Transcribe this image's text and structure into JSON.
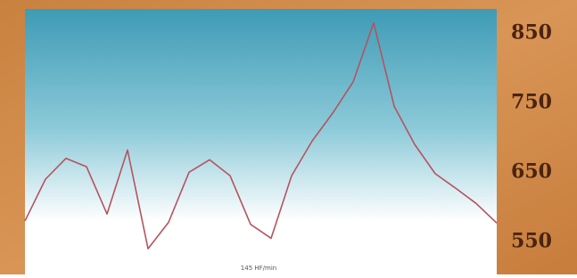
{
  "chart_data": {
    "type": "line",
    "annotation": "145 HF/min",
    "values": [
      580,
      640,
      670,
      658,
      590,
      682,
      540,
      578,
      650,
      668,
      645,
      575,
      555,
      645,
      695,
      735,
      780,
      865,
      745,
      690,
      648,
      627,
      605,
      577
    ],
    "color": "#b5535e",
    "ylim": [
      503,
      885
    ],
    "yticks": [
      550,
      650,
      750,
      850
    ],
    "grid": false,
    "axis_side": "right"
  }
}
